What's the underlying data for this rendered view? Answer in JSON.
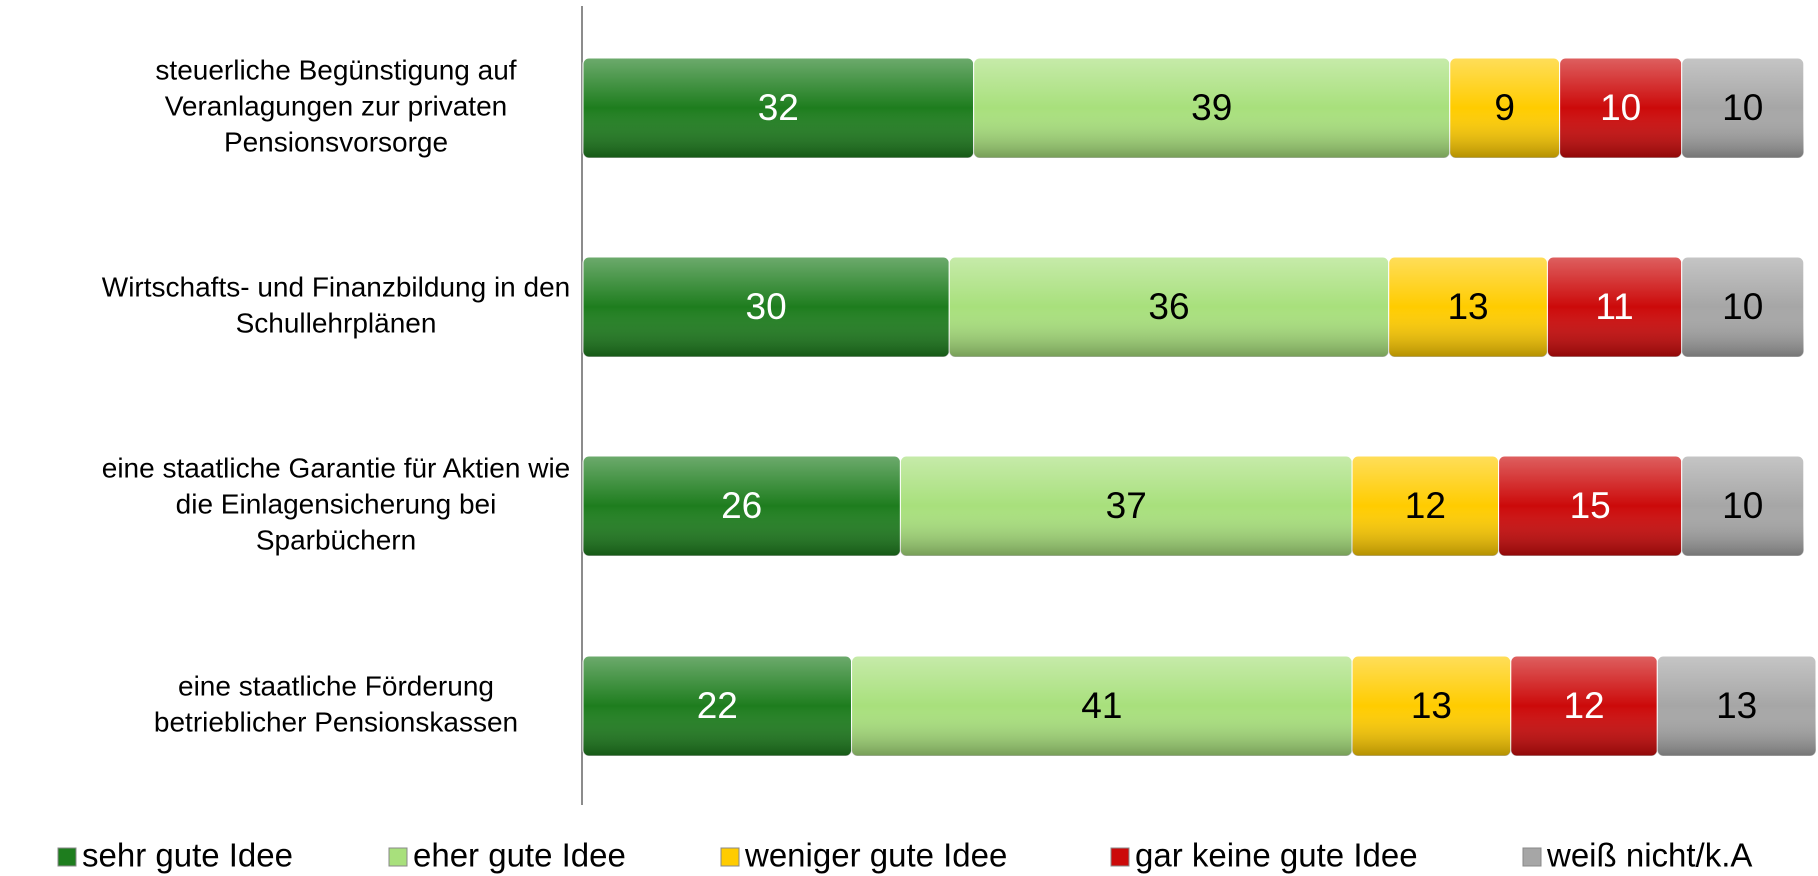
{
  "chart_data": {
    "type": "stacked_barh",
    "categories": [
      [
        "steuerliche Begünstigung auf",
        "Veranlagungen zur privaten",
        "Pensionsvorsorge"
      ],
      [
        "Wirtschafts- und Finanzbildung in den",
        "Schullehrplänen"
      ],
      [
        "eine staatliche Garantie für Aktien wie",
        "die Einlagensicherung bei",
        "Sparbüchern"
      ],
      [
        "eine staatliche Förderung",
        "betrieblicher Pensionskassen"
      ]
    ],
    "series": [
      {
        "name": "sehr gute Idee",
        "color": "#1e7d1e",
        "text_color": "#ffffff",
        "values": [
          32,
          30,
          26,
          22
        ]
      },
      {
        "name": "eher gute Idee",
        "color": "#a8e07c",
        "text_color": "#000000",
        "values": [
          39,
          36,
          37,
          41
        ]
      },
      {
        "name": "weniger gute Idee",
        "color": "#ffcc00",
        "text_color": "#000000",
        "values": [
          9,
          13,
          12,
          13
        ]
      },
      {
        "name": "gar keine gute Idee",
        "color": "#cc0a0a",
        "text_color": "#ffffff",
        "values": [
          10,
          11,
          15,
          12
        ]
      },
      {
        "name": "weiß nicht/k.A",
        "color": "#a6a6a6",
        "text_color": "#000000",
        "values": [
          10,
          10,
          10,
          13
        ]
      }
    ],
    "xlim": [
      0,
      101
    ],
    "legend": "bottom"
  }
}
